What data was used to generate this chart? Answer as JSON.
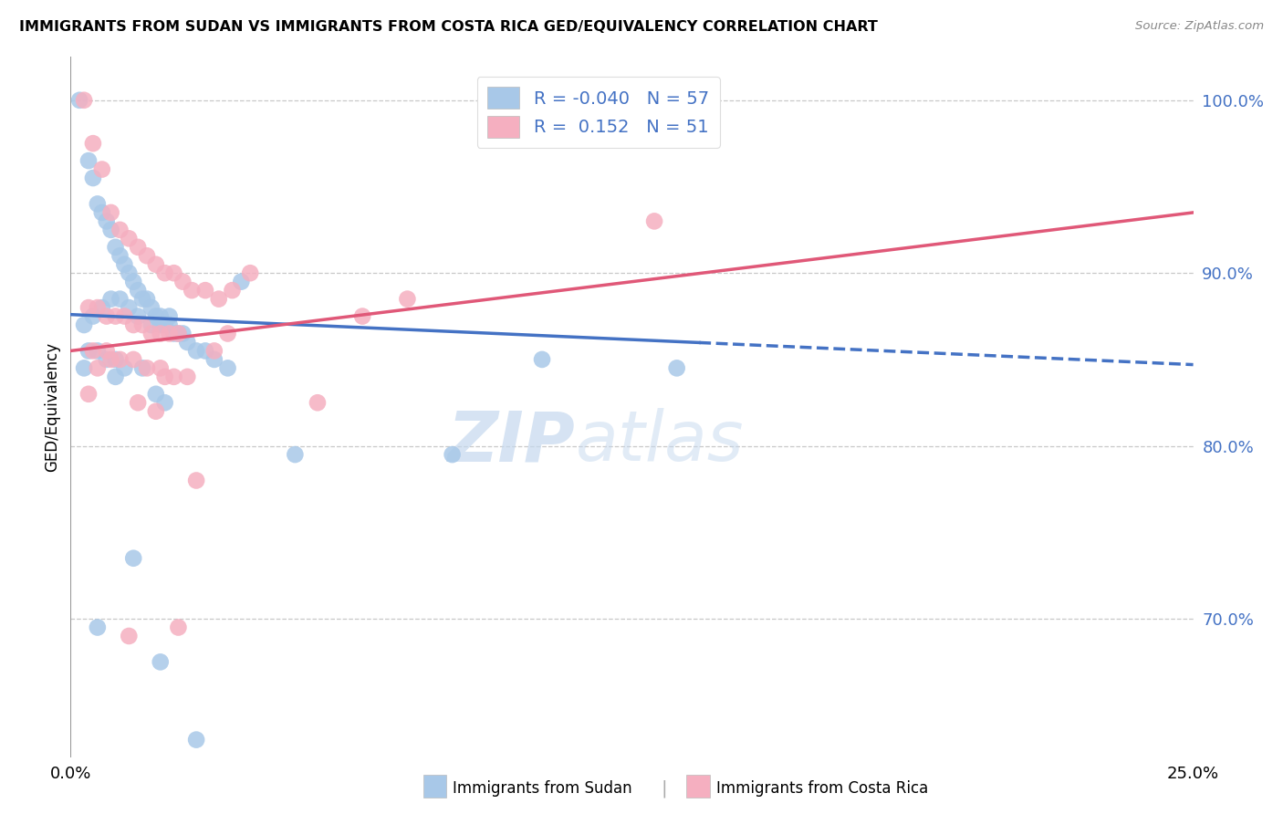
{
  "title": "IMMIGRANTS FROM SUDAN VS IMMIGRANTS FROM COSTA RICA GED/EQUIVALENCY CORRELATION CHART",
  "source": "Source: ZipAtlas.com",
  "ylabel": "GED/Equivalency",
  "yticks": [
    70.0,
    80.0,
    90.0,
    100.0
  ],
  "ytick_labels": [
    "70.0%",
    "80.0%",
    "90.0%",
    "100.0%"
  ],
  "xmin": 0.0,
  "xmax": 25.0,
  "ymin": 62.0,
  "ymax": 102.5,
  "sudan_R": "-0.040",
  "sudan_N": "57",
  "costa_rica_R": "0.152",
  "costa_rica_N": "51",
  "legend_label_sudan": "Immigrants from Sudan",
  "legend_label_costa_rica": "Immigrants from Costa Rica",
  "sudan_color": "#a8c8e8",
  "costa_rica_color": "#f5afc0",
  "trend_sudan_color": "#4472c4",
  "trend_costa_rica_color": "#e05878",
  "watermark_zip": "ZIP",
  "watermark_atlas": "atlas",
  "sudan_scatter_x": [
    0.2,
    0.4,
    0.5,
    0.6,
    0.7,
    0.8,
    0.9,
    1.0,
    1.1,
    1.2,
    1.3,
    1.4,
    1.5,
    1.6,
    1.7,
    1.8,
    1.9,
    2.0,
    2.1,
    2.2,
    2.3,
    2.4,
    2.5,
    2.6,
    2.8,
    3.0,
    3.2,
    3.5,
    0.3,
    0.5,
    0.7,
    0.9,
    1.1,
    1.3,
    1.5,
    1.8,
    2.0,
    2.2,
    0.4,
    0.6,
    0.8,
    1.0,
    1.2,
    1.6,
    1.9,
    2.1,
    3.8,
    5.0,
    8.5,
    10.5,
    13.5,
    0.3,
    0.6,
    1.0,
    1.4,
    2.0,
    2.8
  ],
  "sudan_scatter_y": [
    100.0,
    96.5,
    95.5,
    94.0,
    93.5,
    93.0,
    92.5,
    91.5,
    91.0,
    90.5,
    90.0,
    89.5,
    89.0,
    88.5,
    88.5,
    88.0,
    87.5,
    87.5,
    87.0,
    87.0,
    86.5,
    86.5,
    86.5,
    86.0,
    85.5,
    85.5,
    85.0,
    84.5,
    87.0,
    87.5,
    88.0,
    88.5,
    88.5,
    88.0,
    87.5,
    87.0,
    87.0,
    87.5,
    85.5,
    85.5,
    85.0,
    85.0,
    84.5,
    84.5,
    83.0,
    82.5,
    89.5,
    79.5,
    79.5,
    85.0,
    84.5,
    84.5,
    69.5,
    84.0,
    73.5,
    67.5,
    63.0
  ],
  "costa_rica_scatter_x": [
    0.3,
    0.5,
    0.7,
    0.9,
    1.1,
    1.3,
    1.5,
    1.7,
    1.9,
    2.1,
    2.3,
    2.5,
    2.7,
    3.0,
    3.3,
    3.6,
    0.4,
    0.6,
    0.8,
    1.0,
    1.2,
    1.4,
    1.6,
    1.8,
    2.0,
    2.2,
    2.4,
    0.5,
    0.8,
    1.1,
    1.4,
    1.7,
    2.0,
    2.3,
    2.6,
    3.5,
    4.0,
    5.5,
    7.5,
    13.0,
    0.4,
    0.9,
    1.5,
    2.1,
    2.8,
    1.3,
    2.4,
    1.9,
    3.2,
    0.6,
    6.5
  ],
  "costa_rica_scatter_y": [
    100.0,
    97.5,
    96.0,
    93.5,
    92.5,
    92.0,
    91.5,
    91.0,
    90.5,
    90.0,
    90.0,
    89.5,
    89.0,
    89.0,
    88.5,
    89.0,
    88.0,
    88.0,
    87.5,
    87.5,
    87.5,
    87.0,
    87.0,
    86.5,
    86.5,
    86.5,
    86.5,
    85.5,
    85.5,
    85.0,
    85.0,
    84.5,
    84.5,
    84.0,
    84.0,
    86.5,
    90.0,
    82.5,
    88.5,
    93.0,
    83.0,
    85.0,
    82.5,
    84.0,
    78.0,
    69.0,
    69.5,
    82.0,
    85.5,
    84.5,
    87.5
  ],
  "trend_sudan_x0": 0.0,
  "trend_sudan_y0": 87.6,
  "trend_sudan_x1": 25.0,
  "trend_sudan_y1": 84.7,
  "trend_sudan_solid_end": 14.0,
  "trend_costa_x0": 0.0,
  "trend_costa_y0": 85.5,
  "trend_costa_x1": 25.0,
  "trend_costa_y1": 93.5
}
